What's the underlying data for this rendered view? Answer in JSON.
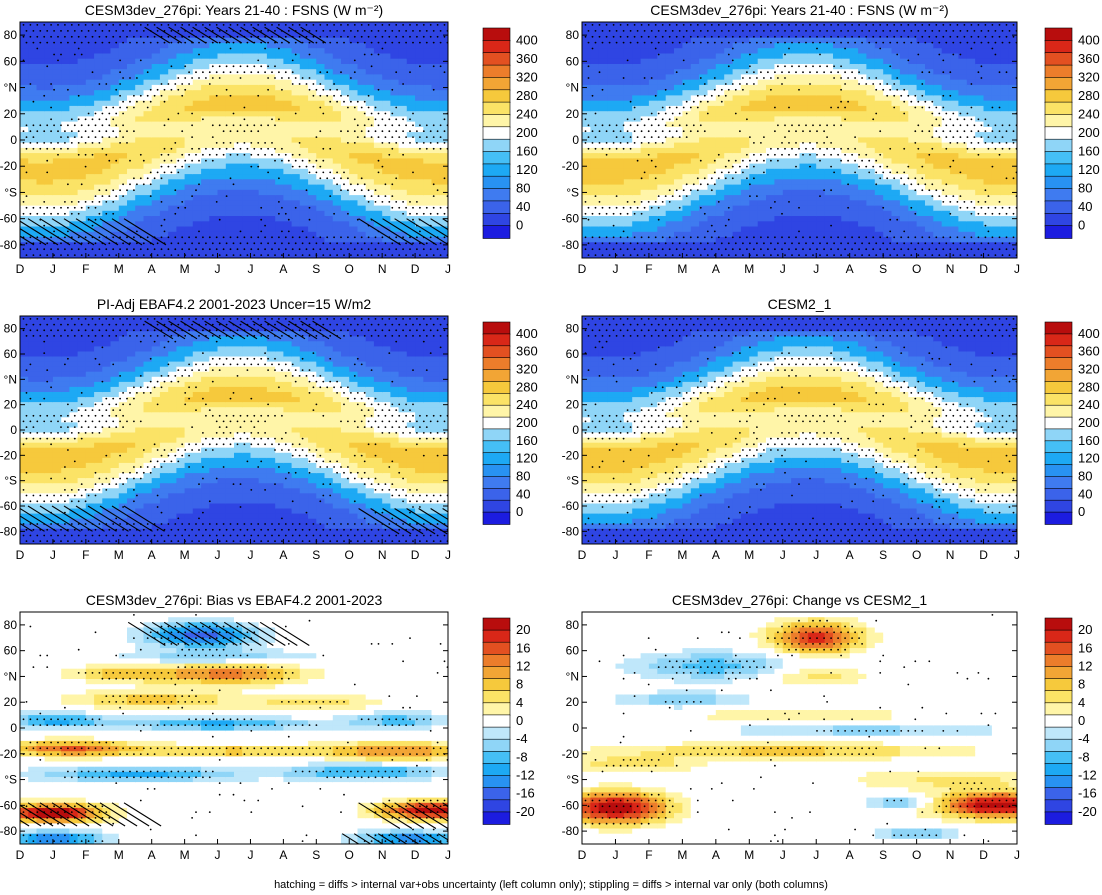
{
  "footer": "hatching = diffs > internal var+obs uncertainty (left column only); stippling = diffs > internal var only (both columns)",
  "months": [
    "D",
    "J",
    "F",
    "M",
    "A",
    "M",
    "J",
    "J",
    "A",
    "S",
    "O",
    "N",
    "D",
    "J"
  ],
  "lat_ticks": [
    "80",
    "60",
    "°N",
    "20",
    "0",
    "-20",
    "°S",
    "-60",
    "-80"
  ],
  "colors_abs": [
    "#1c1ce0",
    "#2f45e3",
    "#3b63ea",
    "#3f7bf0",
    "#2892f2",
    "#1da9f4",
    "#45bff6",
    "#8fd5f7",
    "#ffffff",
    "#fff5a8",
    "#fbe366",
    "#f6c93c",
    "#f2a535",
    "#ec7d2b",
    "#e35021",
    "#d92718",
    "#b80d0d"
  ],
  "colors_diff": [
    "#1c1ce0",
    "#2f45e3",
    "#3b63ea",
    "#2892f2",
    "#1da9f4",
    "#45bff6",
    "#8fd5f7",
    "#bfe7fa",
    "#ffffff",
    "#fff5a8",
    "#fbe366",
    "#f6c93c",
    "#f2a535",
    "#ec7d2b",
    "#e35021",
    "#d92718",
    "#b80d0d"
  ],
  "chart_data": [
    {
      "type": "heatmap",
      "title": "CESM3dev_276pi: Years 21-40 : FSNS (W m⁻²)",
      "x": [
        "D",
        "J",
        "F",
        "M",
        "A",
        "M",
        "J",
        "J",
        "A",
        "S",
        "O",
        "N",
        "D",
        "J"
      ],
      "y": [
        "80",
        "60",
        "°N",
        "20",
        "0",
        "-20",
        "°S",
        "-60",
        "-80"
      ],
      "colorbar": [
        "0",
        "40",
        "80",
        "120",
        "160",
        "200",
        "240",
        "280",
        "320",
        "360",
        "400"
      ],
      "zlim": [
        0,
        400
      ],
      "kind": "abs",
      "peak_north": 285,
      "peak_south": 265,
      "hatching": [
        [
          5.0,
          7.5,
          74,
          86
        ],
        [
          0.0,
          2.0,
          -80,
          -60
        ],
        [
          11.5,
          13.0,
          -80,
          -60
        ]
      ],
      "stippling": true
    },
    {
      "type": "heatmap",
      "title": "CESM3dev_276pi: Years 21-40 : FSNS (W m⁻²)",
      "x": [
        "D",
        "J",
        "F",
        "M",
        "A",
        "M",
        "J",
        "J",
        "A",
        "S",
        "O",
        "N",
        "D",
        "J"
      ],
      "y": [
        "80",
        "60",
        "°N",
        "20",
        "0",
        "-20",
        "°S",
        "-60",
        "-80"
      ],
      "colorbar": [
        "0",
        "40",
        "80",
        "120",
        "160",
        "200",
        "240",
        "280",
        "320",
        "360",
        "400"
      ],
      "zlim": [
        0,
        400
      ],
      "kind": "abs",
      "peak_north": 290,
      "peak_south": 270,
      "hatching": [],
      "stippling": true
    },
    {
      "type": "heatmap",
      "title": "PI-Adj EBAF4.2 2001-2023 Uncer=15 W/m2",
      "x": [
        "D",
        "J",
        "F",
        "M",
        "A",
        "M",
        "J",
        "J",
        "A",
        "S",
        "O",
        "N",
        "D",
        "J"
      ],
      "y": [
        "80",
        "60",
        "°N",
        "20",
        "0",
        "-20",
        "°S",
        "-60",
        "-80"
      ],
      "colorbar": [
        "0",
        "40",
        "80",
        "120",
        "160",
        "200",
        "240",
        "280",
        "320",
        "360",
        "400"
      ],
      "zlim": [
        0,
        400
      ],
      "kind": "abs",
      "peak_north": 280,
      "peak_south": 270,
      "hatching": [
        [
          5.0,
          8.0,
          72,
          86
        ],
        [
          0.0,
          2.0,
          -80,
          -60
        ],
        [
          11.5,
          13.0,
          -82,
          -62
        ]
      ],
      "stippling": true
    },
    {
      "type": "heatmap",
      "title": "CESM2_1",
      "x": [
        "D",
        "J",
        "F",
        "M",
        "A",
        "M",
        "J",
        "J",
        "A",
        "S",
        "O",
        "N",
        "D",
        "J"
      ],
      "y": [
        "80",
        "60",
        "°N",
        "20",
        "0",
        "-20",
        "°S",
        "-60",
        "-80"
      ],
      "colorbar": [
        "0",
        "40",
        "80",
        "120",
        "160",
        "200",
        "240",
        "280",
        "320",
        "360",
        "400"
      ],
      "zlim": [
        0,
        400
      ],
      "kind": "abs",
      "peak_north": 290,
      "peak_south": 275,
      "hatching": [],
      "stippling": true
    },
    {
      "type": "heatmap",
      "title": "CESM3dev_276pi: Bias vs EBAF4.2 2001-2023",
      "x": [
        "D",
        "J",
        "F",
        "M",
        "A",
        "M",
        "J",
        "J",
        "A",
        "S",
        "O",
        "N",
        "D",
        "J"
      ],
      "y": [
        "80",
        "60",
        "°N",
        "20",
        "0",
        "-20",
        "°S",
        "-60",
        "-80"
      ],
      "colorbar": [
        "-20",
        "-16",
        "-12",
        "-8",
        "-4",
        "0",
        "4",
        "8",
        "12",
        "16",
        "20"
      ],
      "zlim": [
        -20,
        20
      ],
      "kind": "diff",
      "blobs": [
        [
          5.5,
          72,
          1.6,
          9,
          -16
        ],
        [
          6.3,
          42,
          2.2,
          8,
          13
        ],
        [
          3.0,
          42,
          1.5,
          6,
          8
        ],
        [
          4.0,
          22,
          2.5,
          7,
          8
        ],
        [
          9.0,
          20,
          2.0,
          6,
          6
        ],
        [
          1.0,
          6,
          1.5,
          6,
          -10
        ],
        [
          6.0,
          3,
          3.0,
          5,
          -10
        ],
        [
          11.5,
          6,
          1.5,
          6,
          -8
        ],
        [
          1.5,
          -16,
          2.0,
          6,
          14
        ],
        [
          6.5,
          -18,
          3.0,
          5,
          8
        ],
        [
          11.5,
          -18,
          2.0,
          7,
          12
        ],
        [
          3.5,
          -36,
          3.0,
          6,
          -10
        ],
        [
          10.5,
          -34,
          2.5,
          6,
          -10
        ],
        [
          1.0,
          -66,
          1.5,
          7,
          22
        ],
        [
          12.5,
          -64,
          1.5,
          7,
          22
        ],
        [
          1.0,
          -86,
          1.5,
          6,
          -14
        ],
        [
          11.8,
          -86,
          1.5,
          6,
          -14
        ],
        [
          6.0,
          55,
          3.0,
          6,
          -6
        ]
      ],
      "hatching": [
        [
          4.5,
          6.5,
          64,
          82
        ],
        [
          0.0,
          2.0,
          -76,
          -58
        ],
        [
          11.5,
          13.0,
          -78,
          -58
        ],
        [
          11.0,
          13.0,
          -92,
          -82
        ]
      ],
      "stippling": true
    },
    {
      "type": "heatmap",
      "title": "CESM3dev_276pi: Change vs CESM2_1",
      "x": [
        "D",
        "J",
        "F",
        "M",
        "A",
        "M",
        "J",
        "J",
        "A",
        "S",
        "O",
        "N",
        "D",
        "J"
      ],
      "y": [
        "80",
        "60",
        "°N",
        "20",
        "0",
        "-20",
        "°S",
        "-60",
        "-80"
      ],
      "colorbar": [
        "-20",
        "-16",
        "-12",
        "-8",
        "-4",
        "0",
        "4",
        "8",
        "12",
        "16",
        "20"
      ],
      "zlim": [
        -20,
        20
      ],
      "kind": "diff",
      "blobs": [
        [
          7.0,
          70,
          1.3,
          12,
          18
        ],
        [
          7.0,
          40,
          1.5,
          8,
          6
        ],
        [
          4.0,
          48,
          2.5,
          11,
          -8
        ],
        [
          3.0,
          22,
          2.0,
          6,
          -6
        ],
        [
          6.5,
          10,
          3.5,
          4,
          5
        ],
        [
          8.5,
          -2,
          4.0,
          4,
          -6
        ],
        [
          6.0,
          -18,
          5.0,
          6,
          8
        ],
        [
          1.5,
          -28,
          2.0,
          6,
          6
        ],
        [
          1.0,
          -62,
          1.5,
          12,
          22
        ],
        [
          12.5,
          -60,
          1.8,
          10,
          22
        ],
        [
          9.5,
          -58,
          1.0,
          4,
          -8
        ],
        [
          10.0,
          -82,
          1.2,
          4,
          -8
        ],
        [
          11.0,
          -40,
          3.0,
          8,
          5
        ]
      ],
      "hatching": [],
      "stippling": true
    }
  ]
}
